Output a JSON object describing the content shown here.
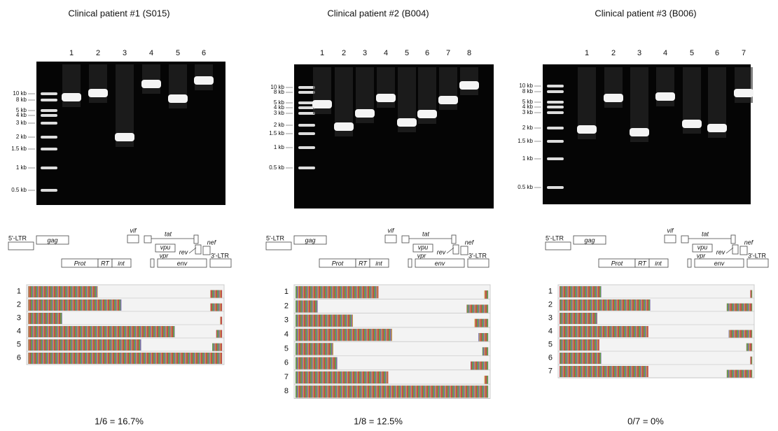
{
  "panels": [
    {
      "title": "Clinical patient #1 (S015)",
      "lanes": [
        "1",
        "2",
        "3",
        "4",
        "5",
        "6"
      ],
      "ladder": [
        "10 kb",
        "8 kb",
        "5 kb",
        "4 kb",
        "3 kb",
        "2 kb",
        "1.5 kb",
        "1 kb",
        "0.5 kb"
      ],
      "genes": [
        "5'-LTR",
        "gag",
        "vif",
        "tat",
        "vpu",
        "rev",
        "nef",
        "vpr",
        "Prot",
        "RT",
        "int",
        "env",
        "3'-LTR"
      ],
      "rows": [
        "1",
        "2",
        "3",
        "4",
        "5",
        "6"
      ],
      "summary": "1/6 = 16.7%"
    },
    {
      "title": "Clinical patient #2 (B004)",
      "lanes": [
        "1",
        "2",
        "3",
        "4",
        "5",
        "6",
        "7",
        "8"
      ],
      "ladder": [
        "10 kb",
        "8 kb",
        "5 kb",
        "4 kb",
        "3 kb",
        "2 kb",
        "1.5 kb",
        "1 kb",
        "0.5 kb"
      ],
      "genes": [
        "5'-LTR",
        "gag",
        "vif",
        "tat",
        "vpu",
        "rev",
        "nef",
        "vpr",
        "Prot",
        "RT",
        "int",
        "env",
        "3'-LTR"
      ],
      "rows": [
        "1",
        "2",
        "3",
        "4",
        "5",
        "6",
        "7",
        "8"
      ],
      "summary": "1/8 = 12.5%"
    },
    {
      "title": "Clinical patient #3 (B006)",
      "lanes": [
        "1",
        "2",
        "3",
        "4",
        "5",
        "6",
        "7"
      ],
      "ladder": [
        "10 kb",
        "8 kb",
        "5 kb",
        "4 kb",
        "3 kb",
        "2 kb",
        "1.5 kb",
        "1 kb",
        "0.5 kb"
      ],
      "genes": [
        "5'-LTR",
        "gag",
        "vif",
        "tat",
        "vpu",
        "rev",
        "nef",
        "vpr",
        "Prot",
        "RT",
        "int",
        "env",
        "3'-LTR"
      ],
      "rows": [
        "1",
        "2",
        "3",
        "4",
        "5",
        "6",
        "7"
      ],
      "summary": "0/7 = 0%"
    }
  ]
}
